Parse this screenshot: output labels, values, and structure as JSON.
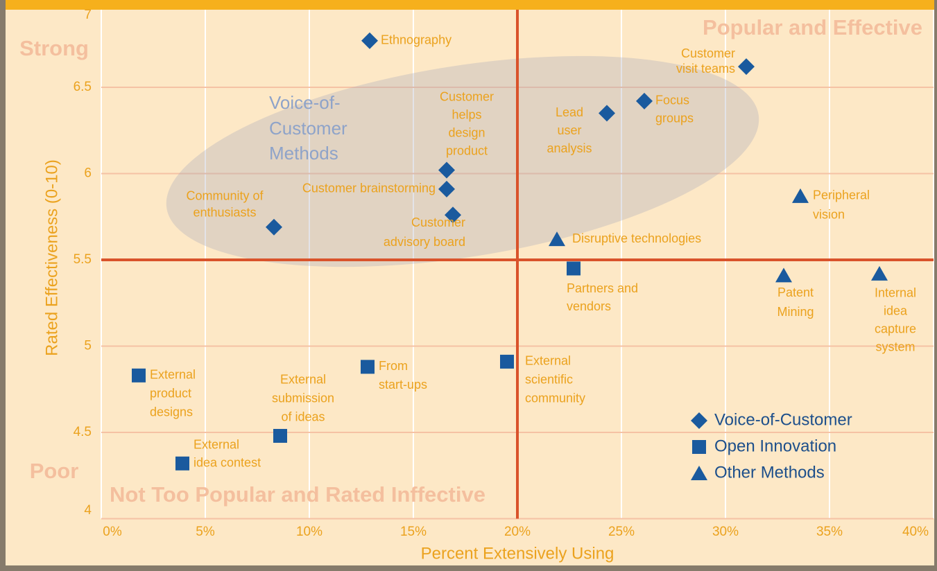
{
  "chart_data": {
    "type": "scatter",
    "xlabel": "Percent Extensively Using",
    "ylabel": "Rated Effectiveness (0-10)",
    "xlim": [
      0,
      40
    ],
    "ylim": [
      4,
      7
    ],
    "xticks": [
      {
        "value": 0,
        "label": "0%"
      },
      {
        "value": 5,
        "label": "5%"
      },
      {
        "value": 10,
        "label": "10%"
      },
      {
        "value": 15,
        "label": "15%"
      },
      {
        "value": 20,
        "label": "20%"
      },
      {
        "value": 25,
        "label": "25%"
      },
      {
        "value": 30,
        "label": "30%"
      },
      {
        "value": 35,
        "label": "35%"
      },
      {
        "value": 40,
        "label": "40%"
      }
    ],
    "yticks": [
      4,
      4.5,
      5,
      5.5,
      6,
      6.5,
      7
    ],
    "xref": 20,
    "yref": 5.5,
    "grid": true,
    "legend": "lower right",
    "annotations": {
      "strong": "Strong",
      "poor": "Poor",
      "top_right": "Popular and Effective",
      "bottom_left": "Not Too Popular and Rated Inffective",
      "group": [
        "Voice-of-",
        "Customer",
        "Methods"
      ]
    },
    "series": [
      {
        "name": "Voice-of-Customer",
        "marker": "diamond",
        "color": "#1a5a9e",
        "x": [
          12.9,
          31.0,
          26.1,
          24.3,
          16.6,
          16.6,
          16.9,
          8.3
        ],
        "values": [
          6.77,
          6.62,
          6.42,
          6.35,
          6.02,
          5.91,
          5.76,
          5.69
        ],
        "labels": [
          [
            "Ethnography"
          ],
          [
            "Customer",
            "visit teams"
          ],
          [
            "Focus",
            "groups"
          ],
          [
            "Lead",
            "user",
            "analysis"
          ],
          [
            "Customer",
            "helps",
            "design",
            "product"
          ],
          [
            "Customer brainstorming"
          ],
          [
            "Customer",
            "advisory board"
          ],
          [
            "Community of",
            "enthusiasts"
          ]
        ]
      },
      {
        "name": "Open Innovation",
        "marker": "square",
        "color": "#1a5a9e",
        "x": [
          22.7,
          19.5,
          12.8,
          1.8,
          8.6,
          3.9
        ],
        "values": [
          5.45,
          4.91,
          4.88,
          4.83,
          4.48,
          4.32
        ],
        "labels": [
          [
            "Partners and",
            "vendors"
          ],
          [
            "External",
            "scientific",
            "community"
          ],
          [
            "From",
            "start-ups"
          ],
          [
            "External",
            "product",
            "designs"
          ],
          [
            "External",
            "submission",
            "of ideas"
          ],
          [
            "External",
            "idea contest"
          ]
        ]
      },
      {
        "name": "Other Methods",
        "marker": "triangle",
        "color": "#1a5a9e",
        "x": [
          33.6,
          21.9,
          32.8,
          37.4
        ],
        "values": [
          5.87,
          5.62,
          5.41,
          5.42
        ],
        "labels": [
          [
            "Peripheral",
            "vision"
          ],
          [
            "Disruptive technologies"
          ],
          [
            "Patent",
            "Mining"
          ],
          [
            "Internal",
            "idea",
            "capture",
            "system"
          ]
        ]
      }
    ]
  }
}
